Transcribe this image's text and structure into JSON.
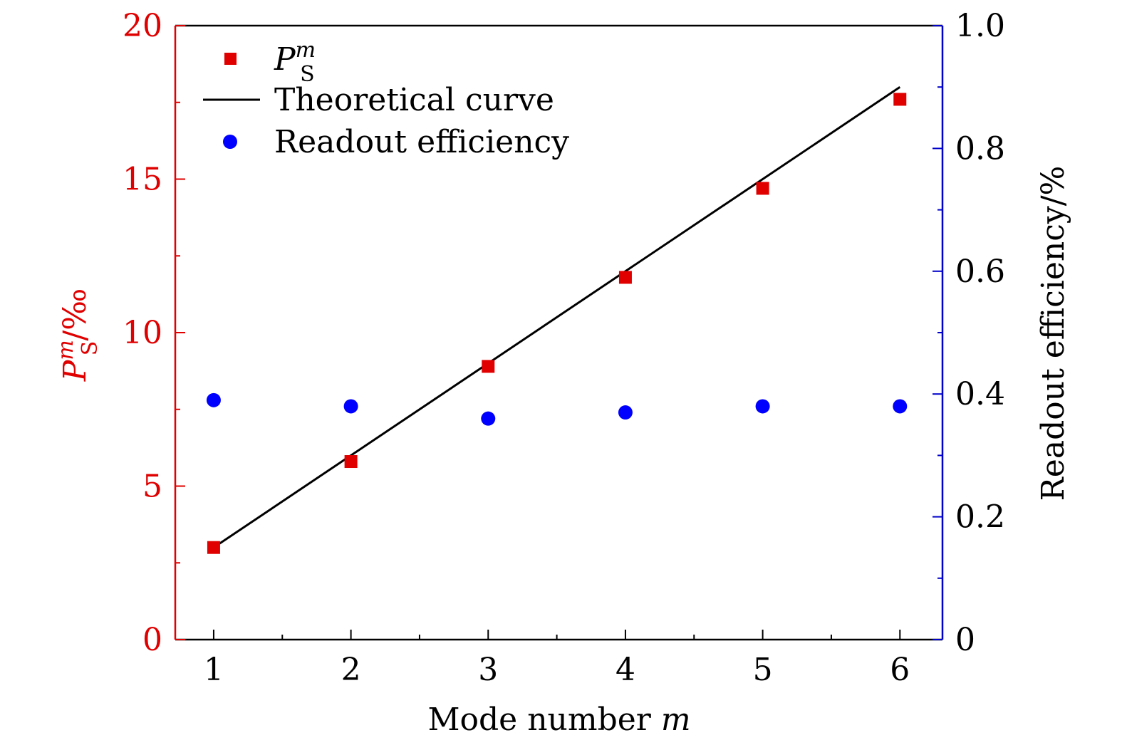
{
  "chart_data": {
    "type": "scatter",
    "title": "",
    "xlabel": {
      "text": "Mode number ",
      "var": "m"
    },
    "ylabel_left": {
      "base": "P",
      "sup": "m",
      "sub": "S",
      "unit": "/‰",
      "color": "#e00000"
    },
    "ylabel_right": {
      "text": "Readout efficiency/%",
      "color": "#000000"
    },
    "x": [
      1,
      2,
      3,
      4,
      5,
      6
    ],
    "x_ticks": [
      "1",
      "2",
      "3",
      "4",
      "5",
      "6"
    ],
    "xlim": [
      0.72,
      6.31
    ],
    "ylim_left": [
      0,
      20
    ],
    "ylim_right": [
      0,
      1.0
    ],
    "y_left_ticks": [
      "0",
      "5",
      "10",
      "15",
      "20"
    ],
    "y_right_ticks": [
      "0",
      "0.2",
      "0.4",
      "0.6",
      "0.8",
      "1.0"
    ],
    "series": [
      {
        "name": {
          "base": "P",
          "sup": "m",
          "sub": "S"
        },
        "kind": "square-marker",
        "axis": "left",
        "color": "#e00000",
        "values": [
          3.0,
          5.8,
          8.9,
          11.8,
          14.7,
          17.6
        ]
      },
      {
        "name": "Theoretical curve",
        "kind": "line",
        "axis": "left",
        "color": "#000000",
        "x": [
          1,
          6
        ],
        "values": [
          3.0,
          18.0
        ]
      },
      {
        "name": "Readout efficiency",
        "kind": "circle-marker",
        "axis": "right",
        "color": "#0000ff",
        "values": [
          0.39,
          0.38,
          0.36,
          0.37,
          0.38,
          0.38
        ]
      }
    ],
    "legend": "top-left",
    "grid": false,
    "colors": {
      "left_axis": "#e00000",
      "right_axis": "#0000cc",
      "frame": "#000000"
    }
  }
}
